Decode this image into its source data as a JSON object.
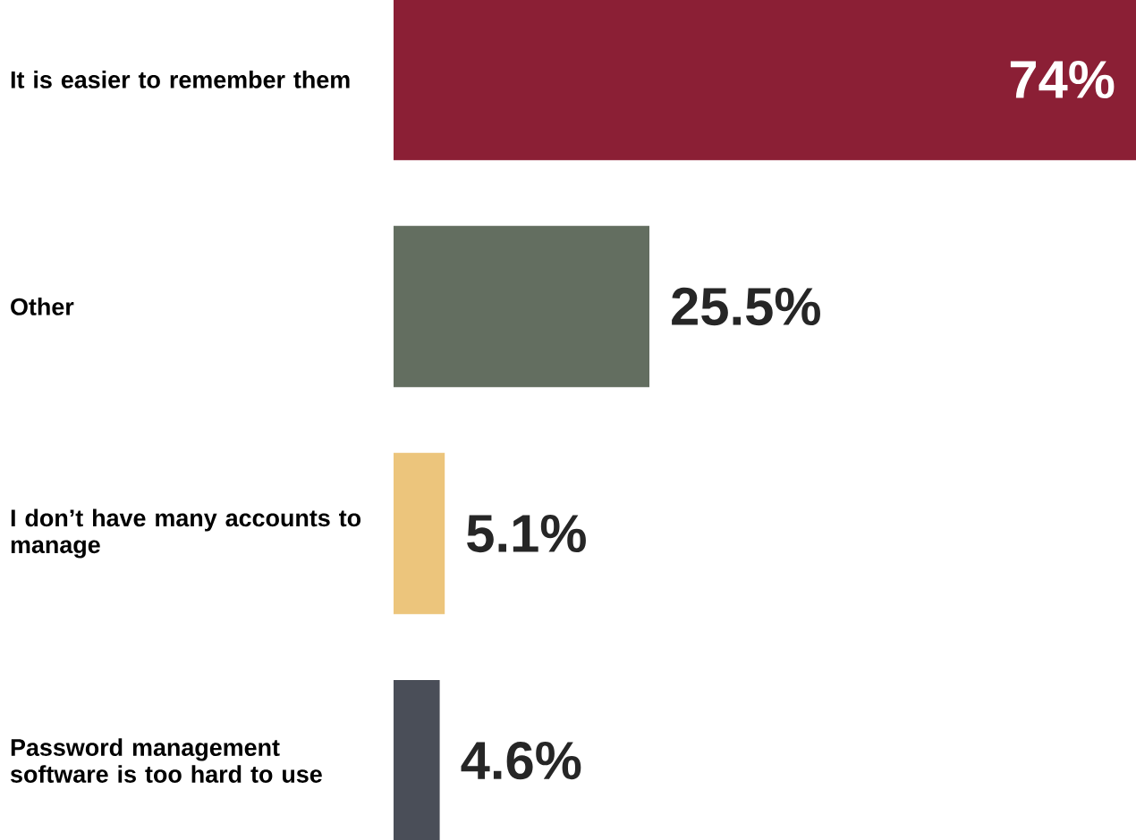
{
  "chart_data": {
    "type": "bar",
    "orientation": "horizontal",
    "categories": [
      "It is easier to remember them",
      "Other",
      "I don’t have many accounts to manage",
      "Password management software is too hard to use"
    ],
    "values": [
      74,
      25.5,
      5.1,
      4.6
    ],
    "colors": [
      "#8b1f35",
      "#636e60",
      "#ecc57c",
      "#4a4e58"
    ],
    "value_labels": [
      "74%",
      "25.5%",
      "5.1%",
      "4.6%"
    ]
  }
}
